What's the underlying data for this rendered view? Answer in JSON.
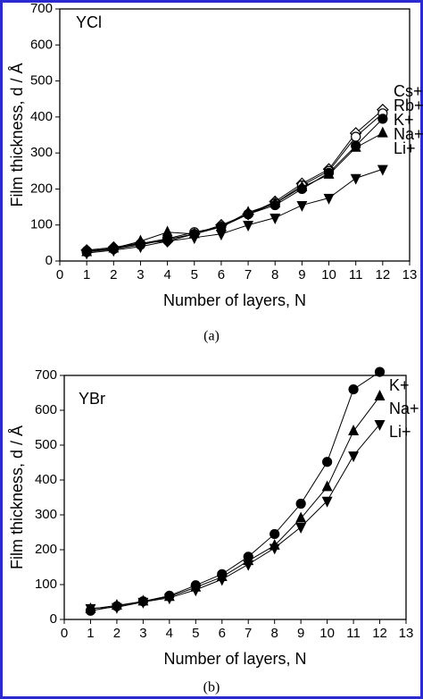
{
  "chart_data": [
    {
      "type": "line",
      "annotation": "YCl",
      "caption": "(a)",
      "x_label": "Number of layers, N",
      "y_label": "Film thickness, d / Å",
      "x": [
        1,
        2,
        3,
        4,
        5,
        6,
        7,
        8,
        9,
        10,
        11,
        12
      ],
      "xlim": [
        0,
        13
      ],
      "xticks": [
        0,
        1,
        2,
        3,
        4,
        5,
        6,
        7,
        8,
        9,
        10,
        11,
        12,
        13
      ],
      "ylim": [
        0,
        700
      ],
      "yticks": [
        0,
        100,
        200,
        300,
        400,
        500,
        600,
        700
      ],
      "series": [
        {
          "name": "Cs+",
          "color": "#000000",
          "marker": "diamond-open",
          "values": [
            30,
            38,
            50,
            55,
            75,
            100,
            130,
            165,
            215,
            255,
            355,
            420
          ]
        },
        {
          "name": "Rb+",
          "color": "#000000",
          "marker": "circle-open",
          "values": [
            28,
            35,
            48,
            62,
            80,
            95,
            130,
            160,
            210,
            250,
            345,
            410
          ]
        },
        {
          "name": "K+",
          "color": "#000000",
          "marker": "circle",
          "values": [
            25,
            33,
            45,
            60,
            75,
            95,
            130,
            155,
            200,
            245,
            320,
            395
          ]
        },
        {
          "name": "Na+",
          "color": "#000000",
          "marker": "triangle-up",
          "values": [
            25,
            35,
            55,
            80,
            75,
            95,
            135,
            160,
            205,
            240,
            315,
            355
          ]
        },
        {
          "name": "Li+",
          "color": "#000000",
          "marker": "triangle-down",
          "values": [
            22,
            30,
            40,
            55,
            65,
            75,
            100,
            120,
            155,
            175,
            230,
            255
          ]
        }
      ]
    },
    {
      "type": "line",
      "annotation": "YBr",
      "caption": "(b)",
      "x_label": "Number of layers, N",
      "y_label": "Film thickness, d / Å",
      "x": [
        1,
        2,
        3,
        4,
        5,
        6,
        7,
        8,
        9,
        10,
        11,
        12
      ],
      "xlim": [
        0,
        13
      ],
      "xticks": [
        0,
        1,
        2,
        3,
        4,
        5,
        6,
        7,
        8,
        9,
        10,
        11,
        12,
        13
      ],
      "ylim": [
        0,
        700
      ],
      "yticks": [
        0,
        100,
        200,
        300,
        400,
        500,
        600,
        700
      ],
      "series": [
        {
          "name": "K+",
          "color": "#000000",
          "marker": "circle",
          "values": [
            25,
            38,
            52,
            68,
            98,
            130,
            180,
            245,
            332,
            452,
            660,
            710
          ]
        },
        {
          "name": "Na+",
          "color": "#000000",
          "marker": "triangle-up",
          "values": [
            30,
            40,
            52,
            65,
            92,
            122,
            168,
            212,
            290,
            380,
            540,
            640
          ]
        },
        {
          "name": "Li+",
          "color": "#000000",
          "marker": "triangle-down",
          "values": [
            32,
            35,
            50,
            62,
            85,
            115,
            158,
            205,
            265,
            340,
            470,
            560
          ]
        }
      ]
    }
  ]
}
